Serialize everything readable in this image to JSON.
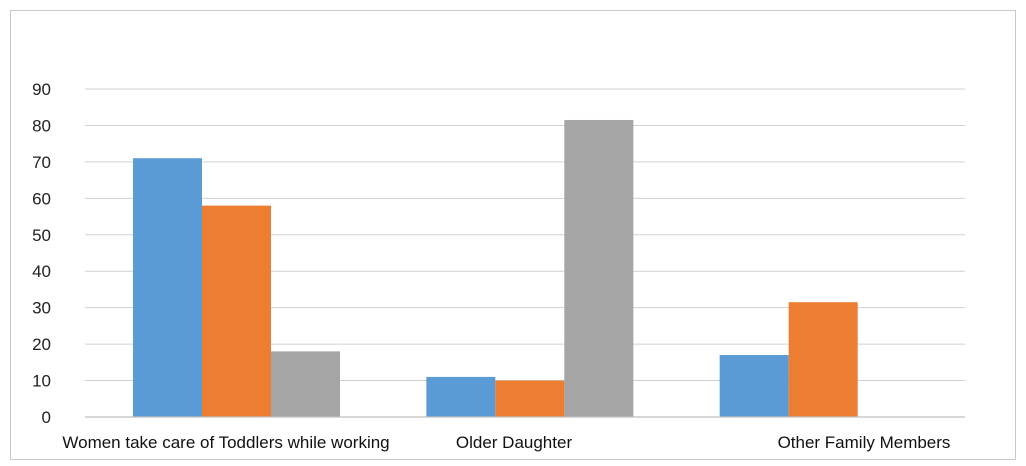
{
  "chart_data": {
    "type": "bar",
    "title": "",
    "xlabel": "",
    "ylabel": "",
    "categories": [
      "Women take care of Toddlers while working",
      "Older Daughter",
      "Other Family Members"
    ],
    "series": [
      {
        "values": [
          71,
          11,
          17
        ],
        "color": "#5b9bd5"
      },
      {
        "values": [
          58,
          10,
          31.5
        ],
        "color": "#ed7d31"
      },
      {
        "values": [
          18,
          81.5,
          0
        ],
        "color": "#a5a5a5"
      }
    ],
    "ylim": [
      0,
      90
    ],
    "yticks": [
      0,
      10,
      20,
      30,
      40,
      50,
      60,
      70,
      80,
      90
    ],
    "grid": true,
    "legend": "none"
  }
}
